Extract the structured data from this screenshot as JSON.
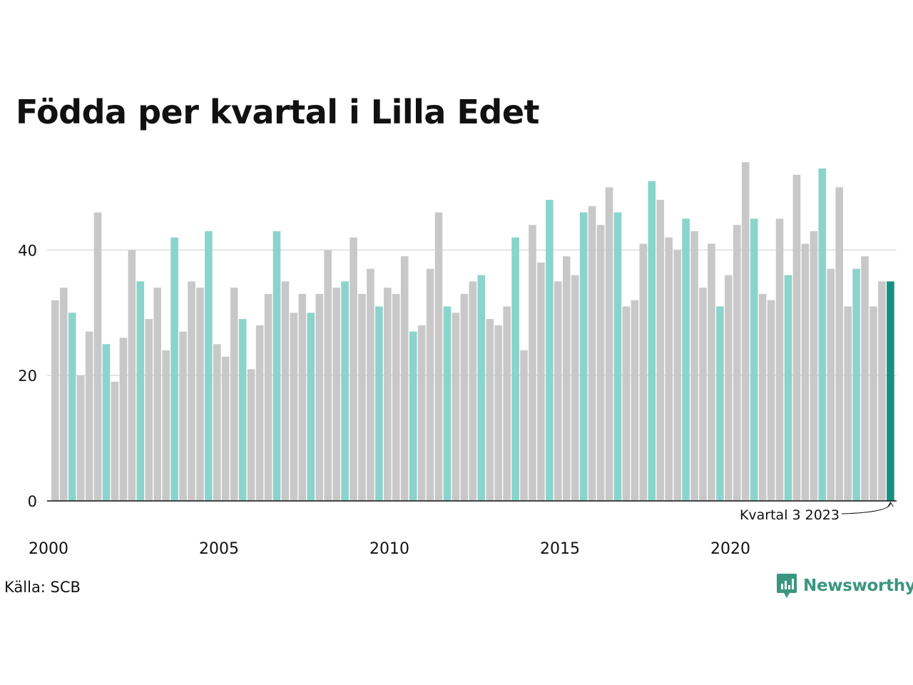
{
  "title": "Födda per kvartal i Lilla Edet",
  "source": "Källa: SCB",
  "brand": "Newsworthy",
  "colors": {
    "default_bar": "#c8c8c8",
    "highlight_bar": "#8ad4cb",
    "latest_bar": "#16907f",
    "grid": "#dddddd",
    "axis": "#111111",
    "brand": "#3a9680"
  },
  "chart_data": {
    "type": "bar",
    "title": "Födda per kvartal i Lilla Edet",
    "xlabel": "",
    "ylabel": "",
    "ylim": [
      0,
      55
    ],
    "yticks": [
      0,
      20,
      40
    ],
    "xtick_labels": [
      "2000",
      "2005",
      "2010",
      "2015",
      "2020"
    ],
    "grid": true,
    "highlighted_quarter": 3,
    "annotation": "Kvartal 3 2023",
    "series": [
      {
        "values": [
          32,
          34,
          30,
          20,
          27,
          46,
          25,
          19,
          26,
          40,
          35,
          29,
          34,
          24,
          42,
          27,
          35,
          34,
          43,
          25,
          23,
          34,
          29,
          21,
          28,
          33,
          43,
          35,
          30,
          33,
          30,
          33,
          40,
          34,
          35,
          42,
          33,
          37,
          31,
          34,
          33,
          39,
          27,
          28,
          37,
          46,
          31,
          30,
          33,
          35,
          36,
          29,
          28,
          31,
          42,
          24,
          44,
          38,
          48,
          35,
          39,
          36,
          46,
          47,
          44,
          50,
          46,
          31,
          32,
          41,
          51,
          48,
          42,
          40,
          45,
          43,
          34,
          41,
          31,
          36,
          44,
          54,
          45,
          33,
          32,
          45,
          36,
          52,
          41,
          43,
          53,
          37,
          50,
          31,
          37,
          39,
          31,
          35,
          35
        ]
      }
    ]
  }
}
